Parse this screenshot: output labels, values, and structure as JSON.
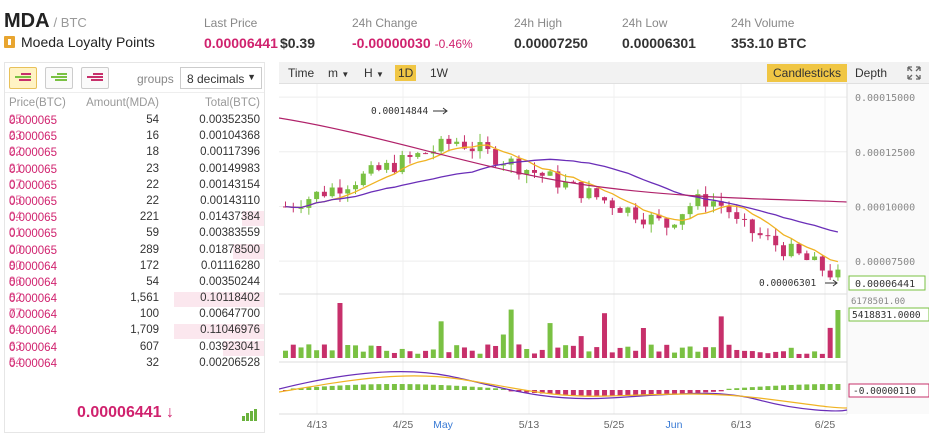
{
  "header": {
    "symbol": "MDA",
    "quote": "/ BTC",
    "coin_name": "Moeda Loyalty Points",
    "coin_icon": "info-icon",
    "last_price_label": "Last Price",
    "last_price": "0.00006441",
    "last_price_usd": "$0.39",
    "change_label": "24h Change",
    "change": "-0.00000030",
    "change_pct": "-0.46%",
    "high_label": "24h High",
    "high": "0.00007250",
    "low_label": "24h Low",
    "low": "0.00006301",
    "volume_label": "24h Volume",
    "volume": "353.10 BTC"
  },
  "orderbook": {
    "groups_label": "groups",
    "decimals": "8 decimals",
    "col_price": "Price(BTC)",
    "col_amount": "Amount(MDA)",
    "col_total": "Total(BTC)",
    "rows": [
      {
        "p1": "0.000065",
        "p2": "25",
        "amount": "54",
        "total": "0.00352350",
        "depth": 0
      },
      {
        "p1": "0.000065",
        "p2": "23",
        "amount": "16",
        "total": "0.00104368",
        "depth": 0
      },
      {
        "p1": "0.000065",
        "p2": "22",
        "amount": "18",
        "total": "0.00117396",
        "depth": 0
      },
      {
        "p1": "0.000065",
        "p2": "21",
        "amount": "23",
        "total": "0.00149983",
        "depth": 0
      },
      {
        "p1": "0.000065",
        "p2": "07",
        "amount": "22",
        "total": "0.00143154",
        "depth": 0
      },
      {
        "p1": "0.000065",
        "p2": "05",
        "amount": "22",
        "total": "0.00143110",
        "depth": 0
      },
      {
        "p1": "0.000065",
        "p2": "04",
        "amount": "221",
        "total": "0.01437384",
        "depth": 0.24
      },
      {
        "p1": "0.000065",
        "p2": "01",
        "amount": "59",
        "total": "0.00383559",
        "depth": 0
      },
      {
        "p1": "0.000065",
        "p2": "00",
        "amount": "289",
        "total": "0.01878500",
        "depth": 0.34
      },
      {
        "p1": "0.000064",
        "p2": "90",
        "amount": "172",
        "total": "0.01116280",
        "depth": 0
      },
      {
        "p1": "0.000064",
        "p2": "86",
        "amount": "54",
        "total": "0.00350244",
        "depth": 0
      },
      {
        "p1": "0.000064",
        "p2": "82",
        "amount": "1,561",
        "total": "0.10118402",
        "depth": 1.0
      },
      {
        "p1": "0.000064",
        "p2": "77",
        "amount": "100",
        "total": "0.00647700",
        "depth": 0
      },
      {
        "p1": "0.000064",
        "p2": "64",
        "amount": "1,709",
        "total": "0.11046976",
        "depth": 1.0
      },
      {
        "p1": "0.000064",
        "p2": "63",
        "amount": "607",
        "total": "0.03923041",
        "depth": 0.45
      },
      {
        "p1": "0.000064",
        "p2": "54",
        "amount": "32",
        "total": "0.00206528",
        "depth": 0
      }
    ],
    "last_price": "0.00006441 ↓"
  },
  "chart_toolbar": {
    "time": "Time",
    "minutes": "m",
    "hours": "H",
    "day": "1D",
    "week": "1W",
    "candlesticks": "Candlesticks",
    "depth": "Depth"
  },
  "chart_data": {
    "type": "candlestick",
    "price_axis": [
      "0.00015000",
      "0.00012500",
      "0.00010000",
      "0.00007500"
    ],
    "price_range": [
      6.18e-05,
      0.000156
    ],
    "x_labels": [
      "4/13",
      "4/25",
      "May",
      "5/13",
      "5/25",
      "Jun",
      "6/13",
      "6/25"
    ],
    "high_marker": "0.00014844",
    "low_marker": "0.00006301",
    "last_price_tag": "0.00006441",
    "volume_axis": "6178501.00",
    "volume_tag": "5418831.0000",
    "macd_tag": "-0.00000110",
    "colors": {
      "up": "#7ac143",
      "down": "#c7306b",
      "ma_short": "#f0b323",
      "ma_long": "#6a2eb8",
      "ma_long2": "#b0226a"
    }
  }
}
